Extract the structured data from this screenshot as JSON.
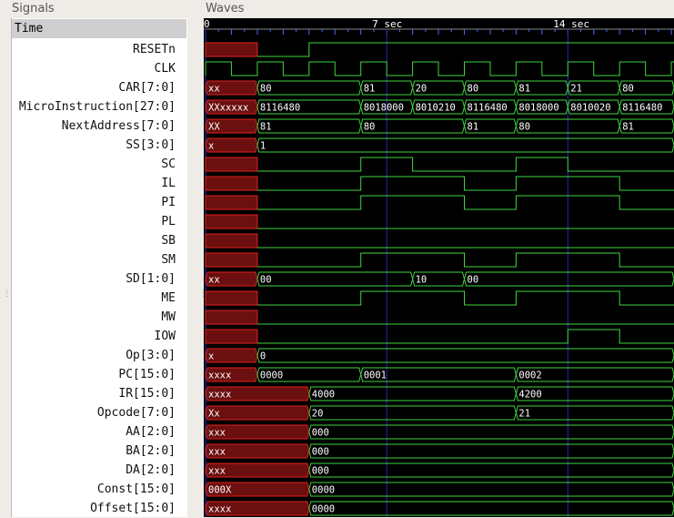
{
  "panes": {
    "signals_title": "Signals",
    "waves_title": "Waves"
  },
  "signals_header": "Time",
  "timeline": {
    "labels": [
      {
        "text": "0",
        "t": 0
      },
      {
        "text": "7 sec",
        "t": 7
      },
      {
        "text": "14 sec",
        "t": 14
      }
    ]
  },
  "colors": {
    "wave": "#3fd43f",
    "undefined_fill": "#6b0f0f",
    "undefined_stroke": "#e02020",
    "background": "#000000",
    "grid": "#2a2ab0",
    "text": "#ffffff"
  },
  "signals": [
    {
      "name": "RESETn",
      "type": "bit",
      "init": "x",
      "changes": [
        [
          2,
          0
        ],
        [
          4,
          1
        ]
      ]
    },
    {
      "name": "CLK",
      "type": "clock",
      "period": 2,
      "init": "x"
    },
    {
      "name": "CAR[7:0]",
      "type": "bus",
      "segments": [
        [
          0,
          2,
          "xx"
        ],
        [
          2,
          6,
          "80"
        ],
        [
          6,
          8,
          "81"
        ],
        [
          8,
          10,
          "20"
        ],
        [
          10,
          12,
          "80"
        ],
        [
          12,
          14,
          "81"
        ],
        [
          14,
          16,
          "21"
        ],
        [
          16,
          18.5,
          "80"
        ]
      ]
    },
    {
      "name": "MicroInstruction[27:0]",
      "type": "bus",
      "segments": [
        [
          0,
          2,
          "XXxxxxx"
        ],
        [
          2,
          6,
          "8116480"
        ],
        [
          6,
          8,
          "8018000"
        ],
        [
          8,
          10,
          "8010210"
        ],
        [
          10,
          12,
          "8116480"
        ],
        [
          12,
          14,
          "8018000"
        ],
        [
          14,
          16,
          "8010020"
        ],
        [
          16,
          18.5,
          "8116480"
        ]
      ]
    },
    {
      "name": "NextAddress[7:0]",
      "type": "bus",
      "segments": [
        [
          0,
          2,
          "XX"
        ],
        [
          2,
          6,
          "81"
        ],
        [
          6,
          10,
          "80"
        ],
        [
          10,
          12,
          "81"
        ],
        [
          12,
          16,
          "80"
        ],
        [
          16,
          18.5,
          "81"
        ]
      ]
    },
    {
      "name": "SS[3:0]",
      "type": "bus",
      "segments": [
        [
          0,
          2,
          "x"
        ],
        [
          2,
          18.5,
          "1"
        ]
      ]
    },
    {
      "name": "SC",
      "type": "bit",
      "init": "x",
      "changes": [
        [
          2,
          0
        ],
        [
          6,
          1
        ],
        [
          8,
          0
        ],
        [
          12,
          1
        ],
        [
          14,
          0
        ]
      ]
    },
    {
      "name": "IL",
      "type": "bit",
      "init": "x",
      "changes": [
        [
          2,
          0
        ],
        [
          6,
          1
        ],
        [
          10,
          0
        ],
        [
          12,
          1
        ],
        [
          16,
          0
        ]
      ]
    },
    {
      "name": "PI",
      "type": "bit",
      "init": "x",
      "changes": [
        [
          2,
          0
        ],
        [
          6,
          1
        ],
        [
          10,
          0
        ],
        [
          12,
          1
        ],
        [
          16,
          0
        ]
      ]
    },
    {
      "name": "PL",
      "type": "bit",
      "init": "x",
      "changes": [
        [
          2,
          0
        ]
      ]
    },
    {
      "name": "SB",
      "type": "bit",
      "init": "x",
      "changes": [
        [
          2,
          0
        ]
      ]
    },
    {
      "name": "SM",
      "type": "bit",
      "init": "x",
      "changes": [
        [
          2,
          0
        ],
        [
          6,
          1
        ],
        [
          10,
          0
        ],
        [
          12,
          1
        ],
        [
          16,
          0
        ]
      ]
    },
    {
      "name": "SD[1:0]",
      "type": "bus",
      "segments": [
        [
          0,
          2,
          "xx"
        ],
        [
          2,
          8,
          "00"
        ],
        [
          8,
          10,
          "10"
        ],
        [
          10,
          18.5,
          "00"
        ]
      ]
    },
    {
      "name": "ME",
      "type": "bit",
      "init": "x",
      "changes": [
        [
          2,
          0
        ],
        [
          6,
          1
        ],
        [
          10,
          0
        ],
        [
          12,
          1
        ],
        [
          16,
          0
        ]
      ]
    },
    {
      "name": "MW",
      "type": "bit",
      "init": "x",
      "changes": [
        [
          2,
          0
        ]
      ]
    },
    {
      "name": "IOW",
      "type": "bit",
      "init": "x",
      "changes": [
        [
          2,
          0
        ],
        [
          14,
          1
        ],
        [
          16,
          0
        ]
      ]
    },
    {
      "name": "Op[3:0]",
      "type": "bus",
      "segments": [
        [
          0,
          2,
          "x"
        ],
        [
          2,
          18.5,
          "0"
        ]
      ]
    },
    {
      "name": "PC[15:0]",
      "type": "bus",
      "segments": [
        [
          0,
          2,
          "xxxx"
        ],
        [
          2,
          6,
          "0000"
        ],
        [
          6,
          12,
          "0001"
        ],
        [
          12,
          18.5,
          "0002"
        ]
      ]
    },
    {
      "name": "IR[15:0]",
      "type": "bus",
      "segments": [
        [
          0,
          4,
          "xxxx"
        ],
        [
          4,
          12,
          "4000"
        ],
        [
          12,
          18.5,
          "4200"
        ]
      ]
    },
    {
      "name": "Opcode[7:0]",
      "type": "bus",
      "segments": [
        [
          0,
          4,
          "Xx"
        ],
        [
          4,
          12,
          "20"
        ],
        [
          12,
          18.5,
          "21"
        ]
      ]
    },
    {
      "name": "AA[2:0]",
      "type": "bus",
      "segments": [
        [
          0,
          4,
          "xxx"
        ],
        [
          4,
          18.5,
          "000"
        ]
      ]
    },
    {
      "name": "BA[2:0]",
      "type": "bus",
      "segments": [
        [
          0,
          4,
          "xxx"
        ],
        [
          4,
          18.5,
          "000"
        ]
      ]
    },
    {
      "name": "DA[2:0]",
      "type": "bus",
      "segments": [
        [
          0,
          4,
          "xxx"
        ],
        [
          4,
          18.5,
          "000"
        ]
      ]
    },
    {
      "name": "Const[15:0]",
      "type": "bus",
      "segments": [
        [
          0,
          4,
          "000X"
        ],
        [
          4,
          18.5,
          "0000"
        ]
      ]
    },
    {
      "name": "Offset[15:0]",
      "type": "bus",
      "segments": [
        [
          0,
          4,
          "xxxx"
        ],
        [
          4,
          18.5,
          "0000"
        ]
      ]
    }
  ]
}
